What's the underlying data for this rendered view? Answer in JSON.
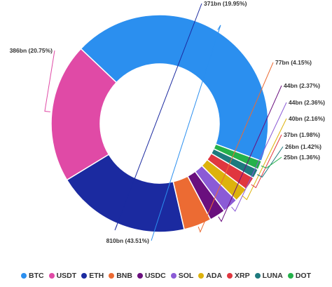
{
  "chart_data": {
    "type": "pie",
    "donut": true,
    "categories": [
      "BTC",
      "USDT",
      "ETH",
      "BNB",
      "USDC",
      "SOL",
      "ADA",
      "XRP",
      "LUNA",
      "DOT"
    ],
    "values": [
      810,
      386,
      371,
      77,
      44,
      44,
      40,
      37,
      26,
      25
    ],
    "labels": [
      "810bn (43.51%)",
      "386bn (20.75%)",
      "371bn (19.95%)",
      "77bn (4.15%)",
      "44bn (2.37%)",
      "44bn (2.36%)",
      "40bn (2.16%)",
      "37bn (1.98%)",
      "26bn (1.42%)",
      "25bn (1.36%)"
    ],
    "colors": [
      "#2b8fef",
      "#e04aa6",
      "#1b2aa0",
      "#ec6b33",
      "#6a0f7e",
      "#8b5bd6",
      "#ddb20c",
      "#e0363f",
      "#1e7a7e",
      "#24b14a"
    ],
    "legend_position": "bottom"
  }
}
